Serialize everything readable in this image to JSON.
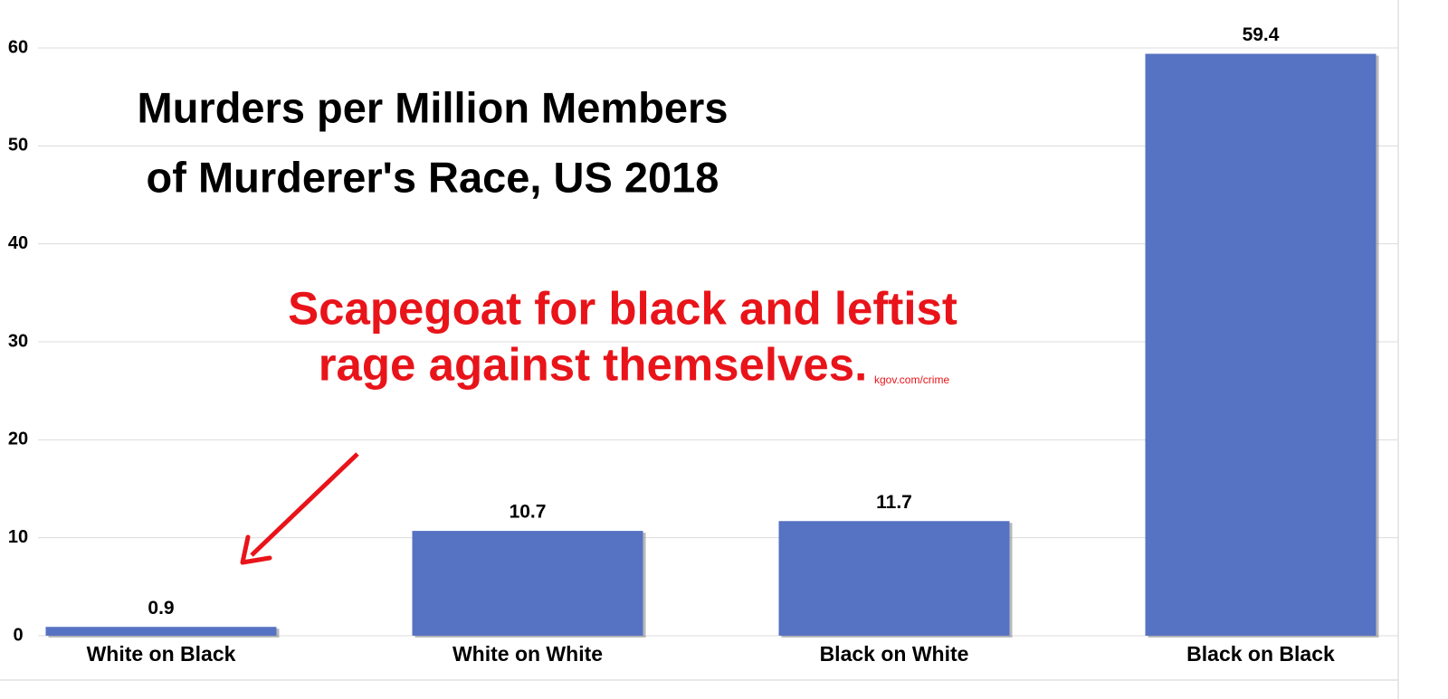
{
  "chart_data": {
    "type": "bar",
    "title": [
      "Murders per Million Members",
      "of Murderer's Race, US 2018"
    ],
    "annotation": [
      "Scapegoat for black and leftist",
      "rage against themselves."
    ],
    "source": "kgov.com/crime",
    "categories": [
      "White on Black",
      "White on White",
      "Black on White",
      "Black on Black"
    ],
    "values": [
      0.9,
      10.7,
      11.7,
      59.4
    ],
    "color": "#5672c2",
    "ylim": [
      0,
      63
    ],
    "yticks": [
      0,
      10,
      20,
      30,
      40,
      50,
      60
    ],
    "grid": true
  }
}
